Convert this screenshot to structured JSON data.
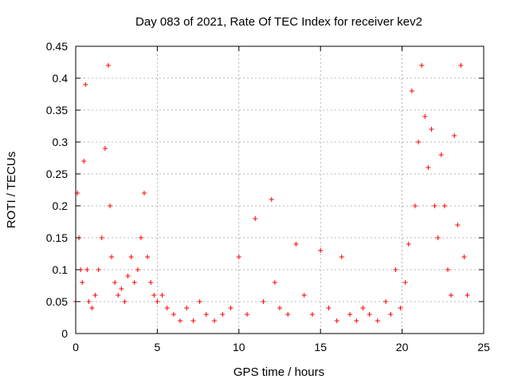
{
  "chart_data": {
    "type": "scatter",
    "title": "Day 083 of 2021, Rate Of TEC Index for receiver kev2",
    "xlabel": "GPS time / hours",
    "ylabel": "ROTI / TECUs",
    "xlim": [
      0,
      25
    ],
    "ylim": [
      0,
      0.45
    ],
    "grid": true,
    "marker": "plus",
    "series": [
      {
        "name": "ROTI",
        "color": "#ff0000",
        "x": [
          0.0,
          0.1,
          0.2,
          0.3,
          0.4,
          0.5,
          0.6,
          0.7,
          0.8,
          1.0,
          1.2,
          1.4,
          1.6,
          1.8,
          2.0,
          2.1,
          2.2,
          2.4,
          2.6,
          2.8,
          3.0,
          3.2,
          3.4,
          3.6,
          3.8,
          4.0,
          4.2,
          4.4,
          4.6,
          4.8,
          5.0,
          5.3,
          5.6,
          6.0,
          6.4,
          6.8,
          7.2,
          7.6,
          8.0,
          8.5,
          9.0,
          9.5,
          10.0,
          10.5,
          11.0,
          11.5,
          12.0,
          12.2,
          12.5,
          13.0,
          13.5,
          14.0,
          14.5,
          15.0,
          15.5,
          16.0,
          16.3,
          16.8,
          17.2,
          17.6,
          18.0,
          18.5,
          19.0,
          19.3,
          19.6,
          19.9,
          20.2,
          20.4,
          20.6,
          20.8,
          21.0,
          21.2,
          21.4,
          21.6,
          21.8,
          22.0,
          22.2,
          22.4,
          22.6,
          22.8,
          23.0,
          23.2,
          23.4,
          23.6,
          23.8,
          24.0
        ],
        "y": [
          0.05,
          0.22,
          0.15,
          0.1,
          0.08,
          0.27,
          0.39,
          0.1,
          0.05,
          0.04,
          0.06,
          0.1,
          0.15,
          0.29,
          0.42,
          0.2,
          0.12,
          0.08,
          0.06,
          0.07,
          0.05,
          0.09,
          0.12,
          0.08,
          0.1,
          0.15,
          0.22,
          0.12,
          0.08,
          0.06,
          0.05,
          0.06,
          0.04,
          0.03,
          0.02,
          0.04,
          0.02,
          0.05,
          0.03,
          0.02,
          0.03,
          0.04,
          0.12,
          0.03,
          0.18,
          0.05,
          0.21,
          0.08,
          0.04,
          0.03,
          0.14,
          0.06,
          0.03,
          0.13,
          0.04,
          0.02,
          0.12,
          0.03,
          0.02,
          0.04,
          0.03,
          0.02,
          0.05,
          0.03,
          0.1,
          0.04,
          0.08,
          0.14,
          0.38,
          0.2,
          0.3,
          0.42,
          0.34,
          0.26,
          0.32,
          0.2,
          0.15,
          0.28,
          0.2,
          0.1,
          0.06,
          0.31,
          0.17,
          0.42,
          0.12,
          0.06
        ]
      }
    ],
    "xticks": [
      "0",
      "5",
      "10",
      "15",
      "20",
      "25"
    ],
    "yticks": [
      "0",
      "0.05",
      "0.1",
      "0.15",
      "0.2",
      "0.25",
      "0.3",
      "0.35",
      "0.4",
      "0.45"
    ]
  }
}
